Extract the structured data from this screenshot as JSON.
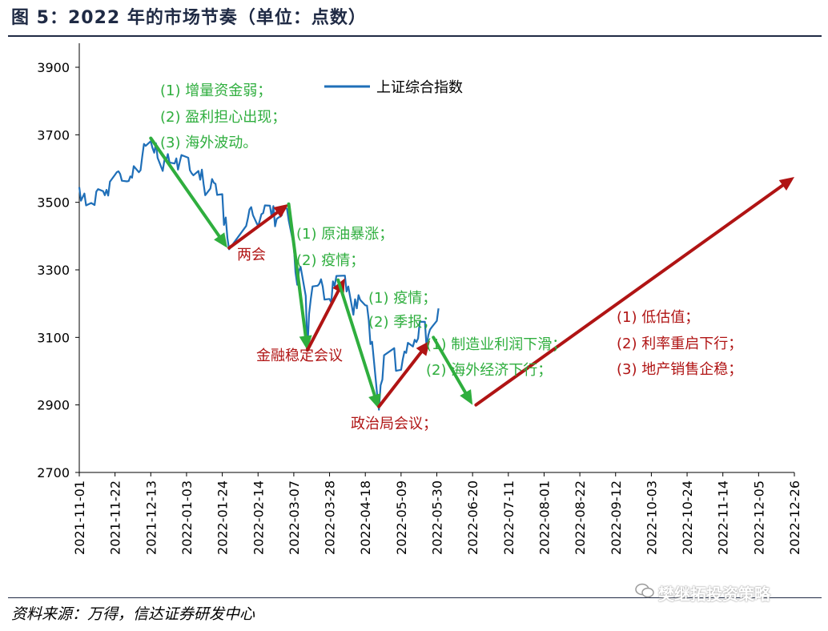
{
  "figure": {
    "title": "图 5：2022 年的市场节奏（单位：点数）",
    "source": "资料来源：万得，信达证券研发中心",
    "watermark": "樊继拓投资策略"
  },
  "colors": {
    "index_line": "#1f6fb8",
    "green_arrow": "#2fae3e",
    "red_arrow": "#b01414"
  },
  "chart_data": {
    "type": "line",
    "title": "",
    "xlabel": "",
    "ylabel": "",
    "ylim": [
      2700,
      3900
    ],
    "yticks": [
      2700,
      2900,
      3100,
      3300,
      3500,
      3700,
      3900
    ],
    "xlim": [
      "2021-11-01",
      "2022-12-26"
    ],
    "xticks": [
      "2021-11-01",
      "2021-11-22",
      "2021-12-13",
      "2022-01-03",
      "2022-01-24",
      "2022-02-14",
      "2022-03-07",
      "2022-03-28",
      "2022-04-18",
      "2022-05-09",
      "2022-05-30",
      "2022-06-20",
      "2022-07-11",
      "2022-08-01",
      "2022-08-22",
      "2022-09-12",
      "2022-10-03",
      "2022-10-24",
      "2022-11-14",
      "2022-12-05",
      "2022-12-26"
    ],
    "legend": {
      "position": "top-center",
      "entries": [
        "上证综合指数"
      ]
    },
    "grid": false,
    "series": [
      {
        "name": "上证综合指数",
        "points": [
          [
            "2021-11-01",
            3545
          ],
          [
            "2021-11-02",
            3505
          ],
          [
            "2021-11-04",
            3526
          ],
          [
            "2021-11-05",
            3491
          ],
          [
            "2021-11-08",
            3498
          ],
          [
            "2021-11-10",
            3492
          ],
          [
            "2021-11-11",
            3532
          ],
          [
            "2021-11-12",
            3539
          ],
          [
            "2021-11-15",
            3533
          ],
          [
            "2021-11-16",
            3521
          ],
          [
            "2021-11-17",
            3537
          ],
          [
            "2021-11-18",
            3520
          ],
          [
            "2021-11-19",
            3561
          ],
          [
            "2021-11-22",
            3582
          ],
          [
            "2021-11-23",
            3589
          ],
          [
            "2021-11-24",
            3592
          ],
          [
            "2021-11-25",
            3584
          ],
          [
            "2021-11-26",
            3564
          ],
          [
            "2021-11-29",
            3562
          ],
          [
            "2021-11-30",
            3563
          ],
          [
            "2021-12-01",
            3577
          ],
          [
            "2021-12-02",
            3573
          ],
          [
            "2021-12-03",
            3607
          ],
          [
            "2021-12-06",
            3589
          ],
          [
            "2021-12-07",
            3595
          ],
          [
            "2021-12-08",
            3637
          ],
          [
            "2021-12-09",
            3673
          ],
          [
            "2021-12-10",
            3667
          ],
          [
            "2021-12-13",
            3681
          ],
          [
            "2021-12-14",
            3661
          ],
          [
            "2021-12-15",
            3647
          ],
          [
            "2021-12-16",
            3675
          ],
          [
            "2021-12-17",
            3632
          ],
          [
            "2021-12-20",
            3593
          ],
          [
            "2021-12-21",
            3625
          ],
          [
            "2021-12-22",
            3622
          ],
          [
            "2021-12-23",
            3643
          ],
          [
            "2021-12-24",
            3618
          ],
          [
            "2021-12-27",
            3615
          ],
          [
            "2021-12-28",
            3630
          ],
          [
            "2021-12-29",
            3597
          ],
          [
            "2021-12-30",
            3619
          ],
          [
            "2021-12-31",
            3640
          ],
          [
            "2022-01-04",
            3632
          ],
          [
            "2022-01-05",
            3595
          ],
          [
            "2022-01-06",
            3586
          ],
          [
            "2022-01-07",
            3580
          ],
          [
            "2022-01-10",
            3593
          ],
          [
            "2022-01-11",
            3567
          ],
          [
            "2022-01-12",
            3597
          ],
          [
            "2022-01-13",
            3555
          ],
          [
            "2022-01-14",
            3521
          ],
          [
            "2022-01-17",
            3541
          ],
          [
            "2022-01-18",
            3569
          ],
          [
            "2022-01-19",
            3558
          ],
          [
            "2022-01-20",
            3555
          ],
          [
            "2022-01-21",
            3522
          ],
          [
            "2022-01-24",
            3524
          ],
          [
            "2022-01-25",
            3433
          ],
          [
            "2022-01-26",
            3455
          ],
          [
            "2022-01-27",
            3394
          ],
          [
            "2022-01-28",
            3361
          ],
          [
            "2022-02-07",
            3430
          ],
          [
            "2022-02-08",
            3452
          ],
          [
            "2022-02-09",
            3479
          ],
          [
            "2022-02-10",
            3486
          ],
          [
            "2022-02-11",
            3462
          ],
          [
            "2022-02-14",
            3429
          ],
          [
            "2022-02-15",
            3446
          ],
          [
            "2022-02-16",
            3465
          ],
          [
            "2022-02-17",
            3468
          ],
          [
            "2022-02-18",
            3491
          ],
          [
            "2022-02-21",
            3490
          ],
          [
            "2022-02-22",
            3457
          ],
          [
            "2022-02-23",
            3489
          ],
          [
            "2022-02-24",
            3429
          ],
          [
            "2022-02-25",
            3451
          ],
          [
            "2022-02-28",
            3462
          ],
          [
            "2022-03-01",
            3488
          ],
          [
            "2022-03-02",
            3484
          ],
          [
            "2022-03-03",
            3481
          ],
          [
            "2022-03-04",
            3447
          ],
          [
            "2022-03-07",
            3372
          ],
          [
            "2022-03-08",
            3293
          ],
          [
            "2022-03-09",
            3256
          ],
          [
            "2022-03-10",
            3296
          ],
          [
            "2022-03-11",
            3309
          ],
          [
            "2022-03-14",
            3223
          ],
          [
            "2022-03-15",
            3064
          ],
          [
            "2022-03-16",
            3170
          ],
          [
            "2022-03-17",
            3215
          ],
          [
            "2022-03-18",
            3251
          ],
          [
            "2022-03-21",
            3253
          ],
          [
            "2022-03-22",
            3259
          ],
          [
            "2022-03-23",
            3272
          ],
          [
            "2022-03-24",
            3251
          ],
          [
            "2022-03-25",
            3212
          ],
          [
            "2022-03-28",
            3214
          ],
          [
            "2022-03-29",
            3203
          ],
          [
            "2022-03-30",
            3266
          ],
          [
            "2022-03-31",
            3252
          ],
          [
            "2022-04-01",
            3282
          ],
          [
            "2022-04-06",
            3283
          ],
          [
            "2022-04-07",
            3236
          ],
          [
            "2022-04-08",
            3251
          ],
          [
            "2022-04-11",
            3167
          ],
          [
            "2022-04-12",
            3213
          ],
          [
            "2022-04-13",
            3186
          ],
          [
            "2022-04-14",
            3225
          ],
          [
            "2022-04-15",
            3211
          ],
          [
            "2022-04-18",
            3195
          ],
          [
            "2022-04-19",
            3194
          ],
          [
            "2022-04-20",
            3151
          ],
          [
            "2022-04-21",
            3080
          ],
          [
            "2022-04-22",
            3087
          ],
          [
            "2022-04-25",
            2928
          ],
          [
            "2022-04-26",
            2886
          ],
          [
            "2022-04-27",
            2958
          ],
          [
            "2022-04-28",
            2975
          ],
          [
            "2022-04-29",
            3047
          ],
          [
            "2022-05-05",
            3068
          ],
          [
            "2022-05-06",
            3001
          ],
          [
            "2022-05-09",
            3004
          ],
          [
            "2022-05-10",
            3035
          ],
          [
            "2022-05-11",
            3058
          ],
          [
            "2022-05-12",
            3054
          ],
          [
            "2022-05-13",
            3084
          ],
          [
            "2022-05-16",
            3073
          ],
          [
            "2022-05-17",
            3093
          ],
          [
            "2022-05-18",
            3086
          ],
          [
            "2022-05-19",
            3097
          ],
          [
            "2022-05-20",
            3146
          ],
          [
            "2022-05-23",
            3146
          ],
          [
            "2022-05-24",
            3071
          ],
          [
            "2022-05-25",
            3107
          ],
          [
            "2022-05-26",
            3123
          ],
          [
            "2022-05-27",
            3130
          ],
          [
            "2022-05-30",
            3149
          ],
          [
            "2022-05-31",
            3186
          ]
        ]
      }
    ],
    "arrows": [
      {
        "color": "green",
        "from": [
          "2021-12-13",
          3690
        ],
        "to": [
          "2022-01-27",
          3365
        ]
      },
      {
        "color": "red",
        "from": [
          "2022-01-28",
          3365
        ],
        "to": [
          "2022-03-04",
          3495
        ]
      },
      {
        "color": "green",
        "from": [
          "2022-03-04",
          3495
        ],
        "to": [
          "2022-03-15",
          3062
        ]
      },
      {
        "color": "red",
        "from": [
          "2022-03-15",
          3062
        ],
        "to": [
          "2022-04-06",
          3275
        ]
      },
      {
        "color": "green",
        "from": [
          "2022-04-02",
          3270
        ],
        "to": [
          "2022-04-26",
          2888
        ]
      },
      {
        "color": "red",
        "from": [
          "2022-04-26",
          2895
        ],
        "to": [
          "2022-05-26",
          3090
        ]
      },
      {
        "color": "green",
        "from": [
          "2022-05-28",
          3100
        ],
        "to": [
          "2022-06-20",
          2900
        ]
      },
      {
        "color": "red",
        "from": [
          "2022-06-22",
          2900
        ],
        "to": [
          "2022-12-26",
          3575
        ]
      }
    ],
    "annotations": [
      {
        "color": "green",
        "lines": [
          "(1) 增量资金弱；",
          "(2) 盈利担心出现；",
          "(3) 海外波动。"
        ]
      },
      {
        "color": "red",
        "lines": [
          "两会"
        ]
      },
      {
        "color": "green",
        "lines": [
          "(1) 原油暴涨；",
          "(2) 疫情；"
        ]
      },
      {
        "color": "red",
        "lines": [
          "金融稳定会议"
        ]
      },
      {
        "color": "green",
        "lines": [
          "(1) 疫情；",
          "(2) 季报；"
        ]
      },
      {
        "color": "red",
        "lines": [
          "政治局会议；"
        ]
      },
      {
        "color": "green",
        "lines": [
          "(1) 制造业利润下滑；",
          "(2) 海外经济下行；"
        ]
      },
      {
        "color": "red",
        "lines": [
          "(1)  低估值；",
          "(2)  利率重启下行；",
          "(3)  地产销售企稳；"
        ]
      }
    ]
  }
}
